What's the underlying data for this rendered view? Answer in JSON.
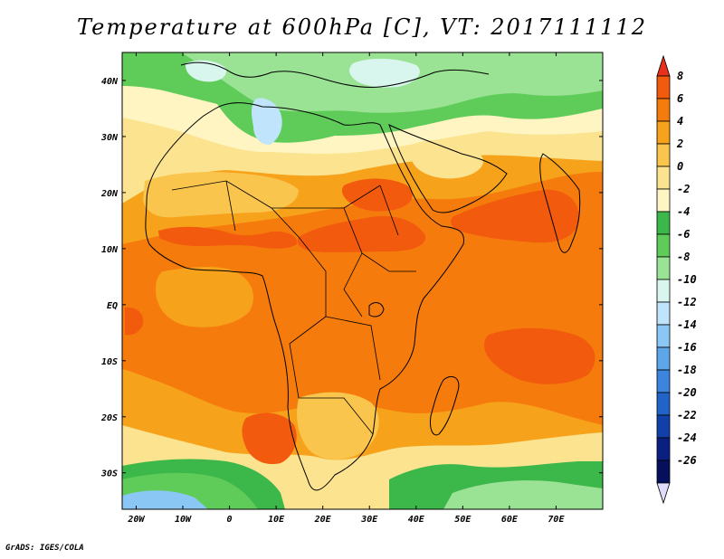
{
  "title": "Temperature at 600hPa [C], VT: 2017111112",
  "credit": "GrADS: IGES/COLA",
  "map": {
    "x_range": [
      -23,
      80
    ],
    "y_range": [
      -36.5,
      45
    ],
    "lon_labels": [
      {
        "lon": -20,
        "text": "20W"
      },
      {
        "lon": -10,
        "text": "10W"
      },
      {
        "lon": 0,
        "text": "0"
      },
      {
        "lon": 10,
        "text": "10E"
      },
      {
        "lon": 20,
        "text": "20E"
      },
      {
        "lon": 30,
        "text": "30E"
      },
      {
        "lon": 40,
        "text": "40E"
      },
      {
        "lon": 50,
        "text": "50E"
      },
      {
        "lon": 60,
        "text": "60E"
      },
      {
        "lon": 70,
        "text": "70E"
      }
    ],
    "lat_labels": [
      {
        "lat": 40,
        "text": "40N"
      },
      {
        "lat": 30,
        "text": "30N"
      },
      {
        "lat": 20,
        "text": "20N"
      },
      {
        "lat": 10,
        "text": "10N"
      },
      {
        "lat": 0,
        "text": "EQ"
      },
      {
        "lat": -10,
        "text": "10S"
      },
      {
        "lat": -20,
        "text": "20S"
      },
      {
        "lat": -30,
        "text": "30S"
      }
    ]
  },
  "colorbar": {
    "labels": [
      "8",
      "6",
      "4",
      "2",
      "0",
      "-2",
      "-4",
      "-6",
      "-8",
      "-10",
      "-12",
      "-14",
      "-16",
      "-18",
      "-20",
      "-22",
      "-24",
      "-26"
    ],
    "colors": [
      "#e8311b",
      "#f25a0e",
      "#f57c0c",
      "#f7a21b",
      "#f9c54d",
      "#fbe38f",
      "#fef5c2",
      "#3cb84b",
      "#5fcc5a",
      "#9be394",
      "#d8f6ee",
      "#bfe4fb",
      "#8bc7f4",
      "#5ea6ea",
      "#3b85dc",
      "#2163c8",
      "#1140a8",
      "#0a1f80",
      "#060f5c",
      "#e2dcfc"
    ]
  },
  "regions": [
    {
      "name": "warm-sahel",
      "color": "#f25a0e"
    },
    {
      "name": "warm-arabian-sea",
      "color": "#f25a0e"
    },
    {
      "name": "warm-indian-ocean",
      "color": "#f25a0e"
    },
    {
      "name": "warm-namibia",
      "color": "#f25a0e"
    },
    {
      "name": "cool-mediterranean",
      "color": "#5fcc5a"
    },
    {
      "name": "cool-southern-ocean",
      "color": "#5fcc5a"
    }
  ]
}
